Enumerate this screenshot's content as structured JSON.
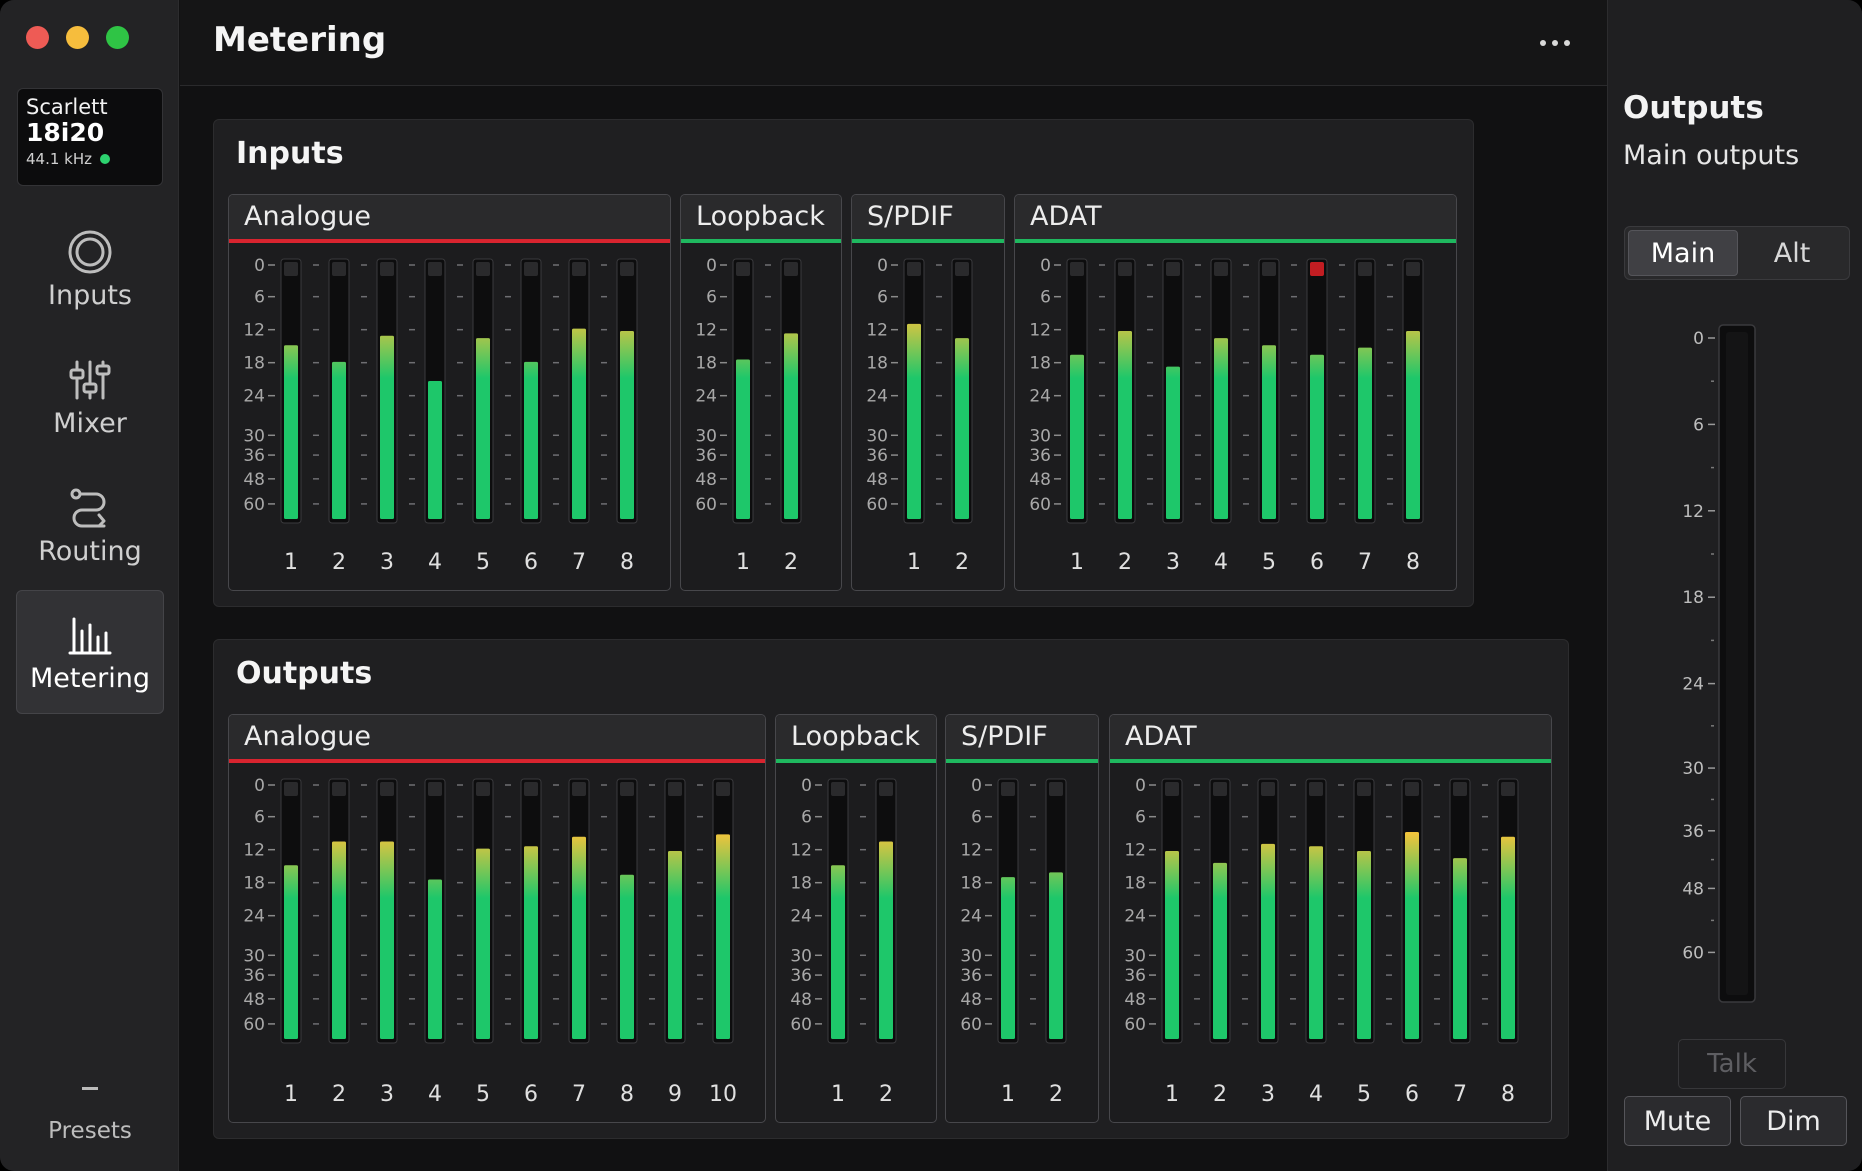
{
  "app": {
    "page_title": "Metering",
    "device": {
      "brand": "Scarlett",
      "model": "18i20",
      "sample_rate": "44.1 kHz"
    }
  },
  "sidebar": {
    "items": [
      {
        "id": "inputs",
        "label": "Inputs",
        "icon": "inputs-ring-icon",
        "active": false
      },
      {
        "id": "mixer",
        "label": "Mixer",
        "icon": "mixer-sliders-icon",
        "active": false
      },
      {
        "id": "routing",
        "label": "Routing",
        "icon": "routing-icon",
        "active": false
      },
      {
        "id": "metering",
        "label": "Metering",
        "icon": "metering-bars-icon",
        "active": true
      }
    ],
    "presets_label": "Presets"
  },
  "colors": {
    "analogue_accent": "#d8242f",
    "digital_accent": "#1fb85f",
    "meter_green": "#1ec76a",
    "meter_yellow": "#f0c43c",
    "meter_orange": "#f08a2a",
    "clip_red": "#c21d22",
    "status_dot": "#2dd36f"
  },
  "scale_labels": [
    "0",
    "6",
    "12",
    "18",
    "24",
    "30",
    "36",
    "48",
    "60"
  ],
  "inputs": {
    "title": "Inputs",
    "groups": [
      {
        "name": "Analogue",
        "accent": "analogue",
        "channels": [
          "1",
          "2",
          "3",
          "4",
          "5",
          "6",
          "7",
          "8"
        ],
        "levels": [
          0.73,
          0.66,
          0.77,
          0.58,
          0.76,
          0.66,
          0.8,
          0.79
        ],
        "clips": [
          false,
          false,
          false,
          false,
          false,
          false,
          false,
          false
        ]
      },
      {
        "name": "Loopback",
        "accent": "digital",
        "channels": [
          "1",
          "2"
        ],
        "levels": [
          0.67,
          0.78
        ],
        "clips": [
          false,
          false
        ]
      },
      {
        "name": "S/PDIF",
        "accent": "digital",
        "channels": [
          "1",
          "2"
        ],
        "levels": [
          0.82,
          0.76
        ],
        "clips": [
          false,
          false
        ]
      },
      {
        "name": "ADAT",
        "accent": "digital",
        "channels": [
          "1",
          "2",
          "3",
          "4",
          "5",
          "6",
          "7",
          "8"
        ],
        "levels": [
          0.69,
          0.79,
          0.64,
          0.76,
          0.73,
          0.69,
          0.72,
          0.79
        ],
        "clips": [
          false,
          false,
          false,
          false,
          false,
          true,
          false,
          false
        ]
      }
    ]
  },
  "outputs": {
    "title": "Outputs",
    "groups": [
      {
        "name": "Analogue",
        "accent": "analogue",
        "channels": [
          "1",
          "2",
          "3",
          "4",
          "5",
          "6",
          "7",
          "8",
          "9",
          "10"
        ],
        "levels": [
          0.73,
          0.83,
          0.83,
          0.67,
          0.8,
          0.81,
          0.85,
          0.69,
          0.79,
          0.86
        ],
        "clips": [
          false,
          false,
          false,
          false,
          false,
          false,
          false,
          false,
          false,
          false
        ]
      },
      {
        "name": "Loopback",
        "accent": "digital",
        "channels": [
          "1",
          "2"
        ],
        "levels": [
          0.73,
          0.83
        ],
        "clips": [
          false,
          false
        ]
      },
      {
        "name": "S/PDIF",
        "accent": "digital",
        "channels": [
          "1",
          "2"
        ],
        "levels": [
          0.68,
          0.7
        ],
        "clips": [
          false,
          false
        ]
      },
      {
        "name": "ADAT",
        "accent": "digital",
        "channels": [
          "1",
          "2",
          "3",
          "4",
          "5",
          "6",
          "7",
          "8"
        ],
        "levels": [
          0.79,
          0.74,
          0.82,
          0.81,
          0.79,
          0.87,
          0.76,
          0.85
        ],
        "clips": [
          false,
          false,
          false,
          false,
          false,
          false,
          false,
          false
        ]
      }
    ]
  },
  "right_panel": {
    "title": "Outputs",
    "subtitle": "Main outputs",
    "tabs": [
      {
        "label": "Main",
        "active": true
      },
      {
        "label": "Alt",
        "active": false
      }
    ],
    "meter_level": 0,
    "scale_labels": [
      "0",
      "6",
      "12",
      "18",
      "24",
      "30",
      "36",
      "48",
      "60"
    ],
    "talk_label": "Talk",
    "mute_label": "Mute",
    "dim_label": "Dim"
  }
}
